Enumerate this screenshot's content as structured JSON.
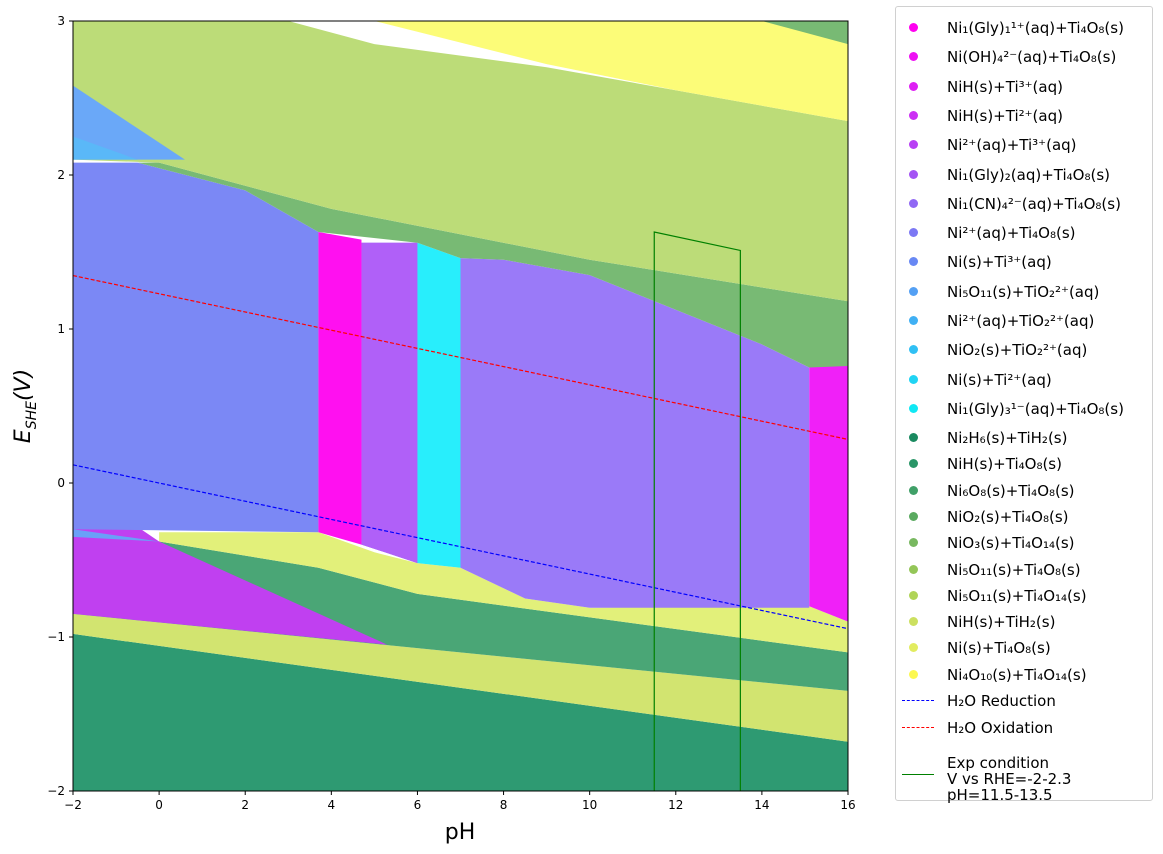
{
  "chart_data": {
    "type": "area",
    "title": "",
    "xlabel": "pH",
    "ylabel": "E_SHE(V)",
    "xlim": [
      -2,
      16
    ],
    "ylim": [
      -2,
      3
    ],
    "xticks": [
      -2,
      0,
      2,
      4,
      6,
      8,
      10,
      12,
      14,
      16
    ],
    "yticks": [
      -2,
      -1,
      0,
      1,
      2,
      3
    ],
    "regions": [
      {
        "name": "Ni2H6(s)+TiH2(s) / NiH(s)+Ti4O8(s)",
        "color": "#2e9a72",
        "polygon": [
          [
            -2,
            -2
          ],
          [
            16,
            -2
          ],
          [
            16,
            -1.68
          ],
          [
            -2,
            -0.98
          ]
        ]
      },
      {
        "name": "NiH(s)+TiH2(s)",
        "color": "#d2e470",
        "polygon": [
          [
            -2,
            -0.98
          ],
          [
            16,
            -1.68
          ],
          [
            16,
            -1.35
          ],
          [
            -2,
            -0.85
          ]
        ]
      },
      {
        "name": "Ni6O8(s)+Ti4O8(s)",
        "color": "#4aa676",
        "polygon": [
          [
            -2,
            -0.85
          ],
          [
            16,
            -1.35
          ],
          [
            16,
            -1.1
          ],
          [
            6,
            -0.72
          ],
          [
            3.7,
            -0.55
          ],
          [
            0,
            -0.38
          ],
          [
            -2,
            -0.3
          ]
        ]
      },
      {
        "name": "Ni(s)+Ti4O8(s)",
        "color": "#e2f07a",
        "polygon": [
          [
            0,
            -0.38
          ],
          [
            3.7,
            -0.55
          ],
          [
            6,
            -0.72
          ],
          [
            16,
            -1.1
          ],
          [
            16,
            -0.9
          ],
          [
            15.1,
            -0.8
          ],
          [
            10,
            -0.81
          ],
          [
            8.5,
            -0.75
          ],
          [
            7,
            -0.55
          ],
          [
            6,
            -0.52
          ],
          [
            5,
            -0.45
          ],
          [
            3.7,
            -0.32
          ],
          [
            0,
            -0.32
          ]
        ]
      },
      {
        "name": "Ni2+(aq)+Ti3+(aq) lower",
        "color": "#c040f0",
        "polygon": [
          [
            -2,
            0
          ],
          [
            -2,
            -0.85
          ],
          [
            5.3,
            -1.05
          ],
          [
            0,
            -0.38
          ]
        ]
      },
      {
        "name": "Ni(s)+Ti3+(aq)",
        "color": "#6aa0f8",
        "polygon": [
          [
            -2,
            -0.3
          ],
          [
            0,
            -0.38
          ],
          [
            -2,
            -0.35
          ]
        ]
      },
      {
        "name": "Ni2+(aq)+Ti4O8(s)",
        "color": "#7b88f5",
        "polygon": [
          [
            -2,
            -0.3
          ],
          [
            3.7,
            -0.32
          ],
          [
            3.7,
            1.63
          ],
          [
            2,
            1.9
          ],
          [
            -0.5,
            2.08
          ],
          [
            -2,
            2.08
          ]
        ]
      },
      {
        "name": "Ni1(CN)4 2-(aq)+Ti4O8(s)",
        "color": "#9a7af8",
        "polygon": [
          [
            4.7,
            -0.4
          ],
          [
            6,
            -0.52
          ],
          [
            6,
            1.56
          ],
          [
            4.7,
            1.56
          ]
        ]
      },
      {
        "name": "Ni1(CN)4 2-(aq)+Ti4O8(s) right",
        "color": "#9a7af8",
        "polygon": [
          [
            7,
            -0.55
          ],
          [
            8.5,
            -0.75
          ],
          [
            10,
            -0.81
          ],
          [
            15.1,
            -0.81
          ],
          [
            15.1,
            0.75
          ],
          [
            14,
            0.9
          ],
          [
            10,
            1.35
          ],
          [
            8,
            1.45
          ],
          [
            7,
            1.46
          ]
        ]
      },
      {
        "name": "Ni1(Gly)2(aq)+Ti4O8(s)",
        "color": "#b060f8",
        "polygon": [
          [
            4.7,
            -0.4
          ],
          [
            4.7,
            1.56
          ],
          [
            6,
            1.56
          ],
          [
            6,
            -0.52
          ]
        ]
      },
      {
        "name": "Ni1(Gly)1 1+(aq)+Ti4O8(s)",
        "color": "#ff10f0",
        "polygon": [
          [
            3.7,
            -0.32
          ],
          [
            4.7,
            -0.4
          ],
          [
            4.7,
            1.58
          ],
          [
            3.7,
            1.63
          ]
        ]
      },
      {
        "name": "Ni1(Gly)3 1-(aq)+Ti4O8(s)",
        "color": "#28eefc",
        "polygon": [
          [
            6,
            -0.52
          ],
          [
            7,
            -0.55
          ],
          [
            7,
            1.46
          ],
          [
            6,
            1.56
          ]
        ]
      },
      {
        "name": "Ni(OH)4 2-(aq)+Ti4O8(s)",
        "color": "#f020f8",
        "polygon": [
          [
            15.1,
            -0.8
          ],
          [
            16,
            -0.9
          ],
          [
            16,
            0.76
          ],
          [
            15.1,
            0.76
          ]
        ]
      },
      {
        "name": "NiO3(s)+Ti4O14(s)",
        "color": "#78ba74",
        "polygon": [
          [
            -0.5,
            2.08
          ],
          [
            2,
            1.9
          ],
          [
            3.7,
            1.63
          ],
          [
            6,
            1.56
          ],
          [
            7,
            1.46
          ],
          [
            8,
            1.45
          ],
          [
            10,
            1.35
          ],
          [
            14,
            0.9
          ],
          [
            15.1,
            0.75
          ],
          [
            16,
            0.76
          ],
          [
            16,
            1.18
          ],
          [
            10,
            1.45
          ],
          [
            4,
            1.78
          ],
          [
            0,
            2.08
          ]
        ]
      },
      {
        "name": "Ni5O11(s)+Ti4O14(s)",
        "color": "#bcdc78",
        "polygon": [
          [
            -2,
            2.1
          ],
          [
            0,
            2.08
          ],
          [
            4,
            1.78
          ],
          [
            10,
            1.45
          ],
          [
            16,
            1.18
          ],
          [
            16,
            2.35
          ],
          [
            9,
            2.7
          ],
          [
            5,
            2.85
          ],
          [
            3,
            3.0
          ],
          [
            -2,
            3.0
          ]
        ]
      },
      {
        "name": "Ni5O11(s)+TiO2 2+(aq)",
        "color": "#6aa8f8",
        "polygon": [
          [
            -2,
            2.58
          ],
          [
            0.6,
            2.1
          ],
          [
            -2,
            2.1
          ]
        ]
      },
      {
        "name": "NiO2(s)+TiO2 2+(aq)",
        "color": "#5ab8f8",
        "polygon": [
          [
            -2,
            2.25
          ],
          [
            -0.5,
            2.1
          ],
          [
            -2,
            2.1
          ]
        ]
      },
      {
        "name": "Ni4O10(s)+Ti4O14(s)",
        "color": "#fcfc78",
        "polygon": [
          [
            5,
            3.0
          ],
          [
            14,
            3.0
          ],
          [
            16,
            2.9
          ],
          [
            16,
            2.35
          ],
          [
            12,
            2.55
          ],
          [
            9,
            2.72
          ]
        ]
      },
      {
        "name": "NiO3(s)+Ti4O14(s) top",
        "color": "#78ba74",
        "polygon": [
          [
            14,
            3.0
          ],
          [
            16,
            3.0
          ],
          [
            16,
            2.85
          ]
        ]
      }
    ],
    "lines": [
      {
        "name": "H2O Reduction",
        "color": "#0000ff",
        "style": "dashed",
        "x": [
          -2,
          16
        ],
        "y": [
          0.118,
          -0.946
        ]
      },
      {
        "name": "H2O Oxidation",
        "color": "#ff0000",
        "style": "dashed",
        "x": [
          -2,
          16
        ],
        "y": [
          1.347,
          0.283
        ]
      },
      {
        "name": "Exp condition",
        "color": "#008000",
        "style": "solid",
        "x": [
          11.5,
          11.5,
          13.5,
          13.5
        ],
        "y": [
          -2,
          1.63,
          1.51,
          -2
        ]
      }
    ],
    "legend_position": "outside-right",
    "legend": [
      {
        "label": "Ni₁(Gly)₁¹⁺(aq)+Ti₄O₈(s)",
        "color": "#ff00f0",
        "marker": "dot"
      },
      {
        "label": "Ni(OH)₄²⁻(aq)+Ti₄O₈(s)",
        "color": "#ee10f4",
        "marker": "dot"
      },
      {
        "label": "NiH(s)+Ti³⁺(aq)",
        "color": "#de20f4",
        "marker": "dot"
      },
      {
        "label": "NiH(s)+Ti²⁺(aq)",
        "color": "#cc30f4",
        "marker": "dot"
      },
      {
        "label": "Ni²⁺(aq)+Ti³⁺(aq)",
        "color": "#b840f4",
        "marker": "dot"
      },
      {
        "label": "Ni₁(Gly)₂(aq)+Ti₄O₈(s)",
        "color": "#a454f4",
        "marker": "dot"
      },
      {
        "label": "Ni₁(CN)₄²⁻(aq)+Ti₄O₈(s)",
        "color": "#9068f4",
        "marker": "dot"
      },
      {
        "label": "Ni²⁺(aq)+Ti₄O₈(s)",
        "color": "#7c78f4",
        "marker": "dot"
      },
      {
        "label": "Ni(s)+Ti³⁺(aq)",
        "color": "#6888f4",
        "marker": "dot"
      },
      {
        "label": "Ni₅O₁₁(s)+TiO₂²⁺(aq)",
        "color": "#54a0f4",
        "marker": "dot"
      },
      {
        "label": "Ni²⁺(aq)+TiO₂²⁺(aq)",
        "color": "#40b0f4",
        "marker": "dot"
      },
      {
        "label": "NiO₂(s)+TiO₂²⁺(aq)",
        "color": "#30c0f4",
        "marker": "dot"
      },
      {
        "label": "Ni(s)+Ti²⁺(aq)",
        "color": "#20d4f4",
        "marker": "dot"
      },
      {
        "label": "Ni₁(Gly)₃¹⁻(aq)+Ti₄O₈(s)",
        "color": "#10e8f4",
        "marker": "dot"
      },
      {
        "label": "Ni₂H₆(s)+TiH₂(s)",
        "color": "#1a8a60",
        "marker": "dot"
      },
      {
        "label": "NiH(s)+Ti₄O₈(s)",
        "color": "#2a9668",
        "marker": "dot"
      },
      {
        "label": "Ni₆O₈(s)+Ti₄O₈(s)",
        "color": "#40a068",
        "marker": "dot"
      },
      {
        "label": "NiO₂(s)+Ti₄O₈(s)",
        "color": "#5aaa60",
        "marker": "dot"
      },
      {
        "label": "NiO₃(s)+Ti₄O₁₄(s)",
        "color": "#78b860",
        "marker": "dot"
      },
      {
        "label": "Ni₅O₁₁(s)+Ti₄O₈(s)",
        "color": "#94c658",
        "marker": "dot"
      },
      {
        "label": "Ni₅O₁₁(s)+Ti₄O₁₄(s)",
        "color": "#b0d458",
        "marker": "dot"
      },
      {
        "label": "NiH(s)+TiH₂(s)",
        "color": "#cce060",
        "marker": "dot"
      },
      {
        "label": "Ni(s)+Ti₄O₈(s)",
        "color": "#e2ec60",
        "marker": "dot"
      },
      {
        "label": "Ni₄O₁₀(s)+Ti₄O₁₄(s)",
        "color": "#fcf850",
        "marker": "dot"
      },
      {
        "label": "H₂O Reduction",
        "color": "#0000ff",
        "marker": "dashed"
      },
      {
        "label": "H₂O Oxidation",
        "color": "#ff0000",
        "marker": "dashed"
      },
      {
        "label": "Exp condition\nV vs RHE=-2-2.3\npH=11.5-13.5",
        "color": "#008000",
        "marker": "solid"
      }
    ]
  }
}
